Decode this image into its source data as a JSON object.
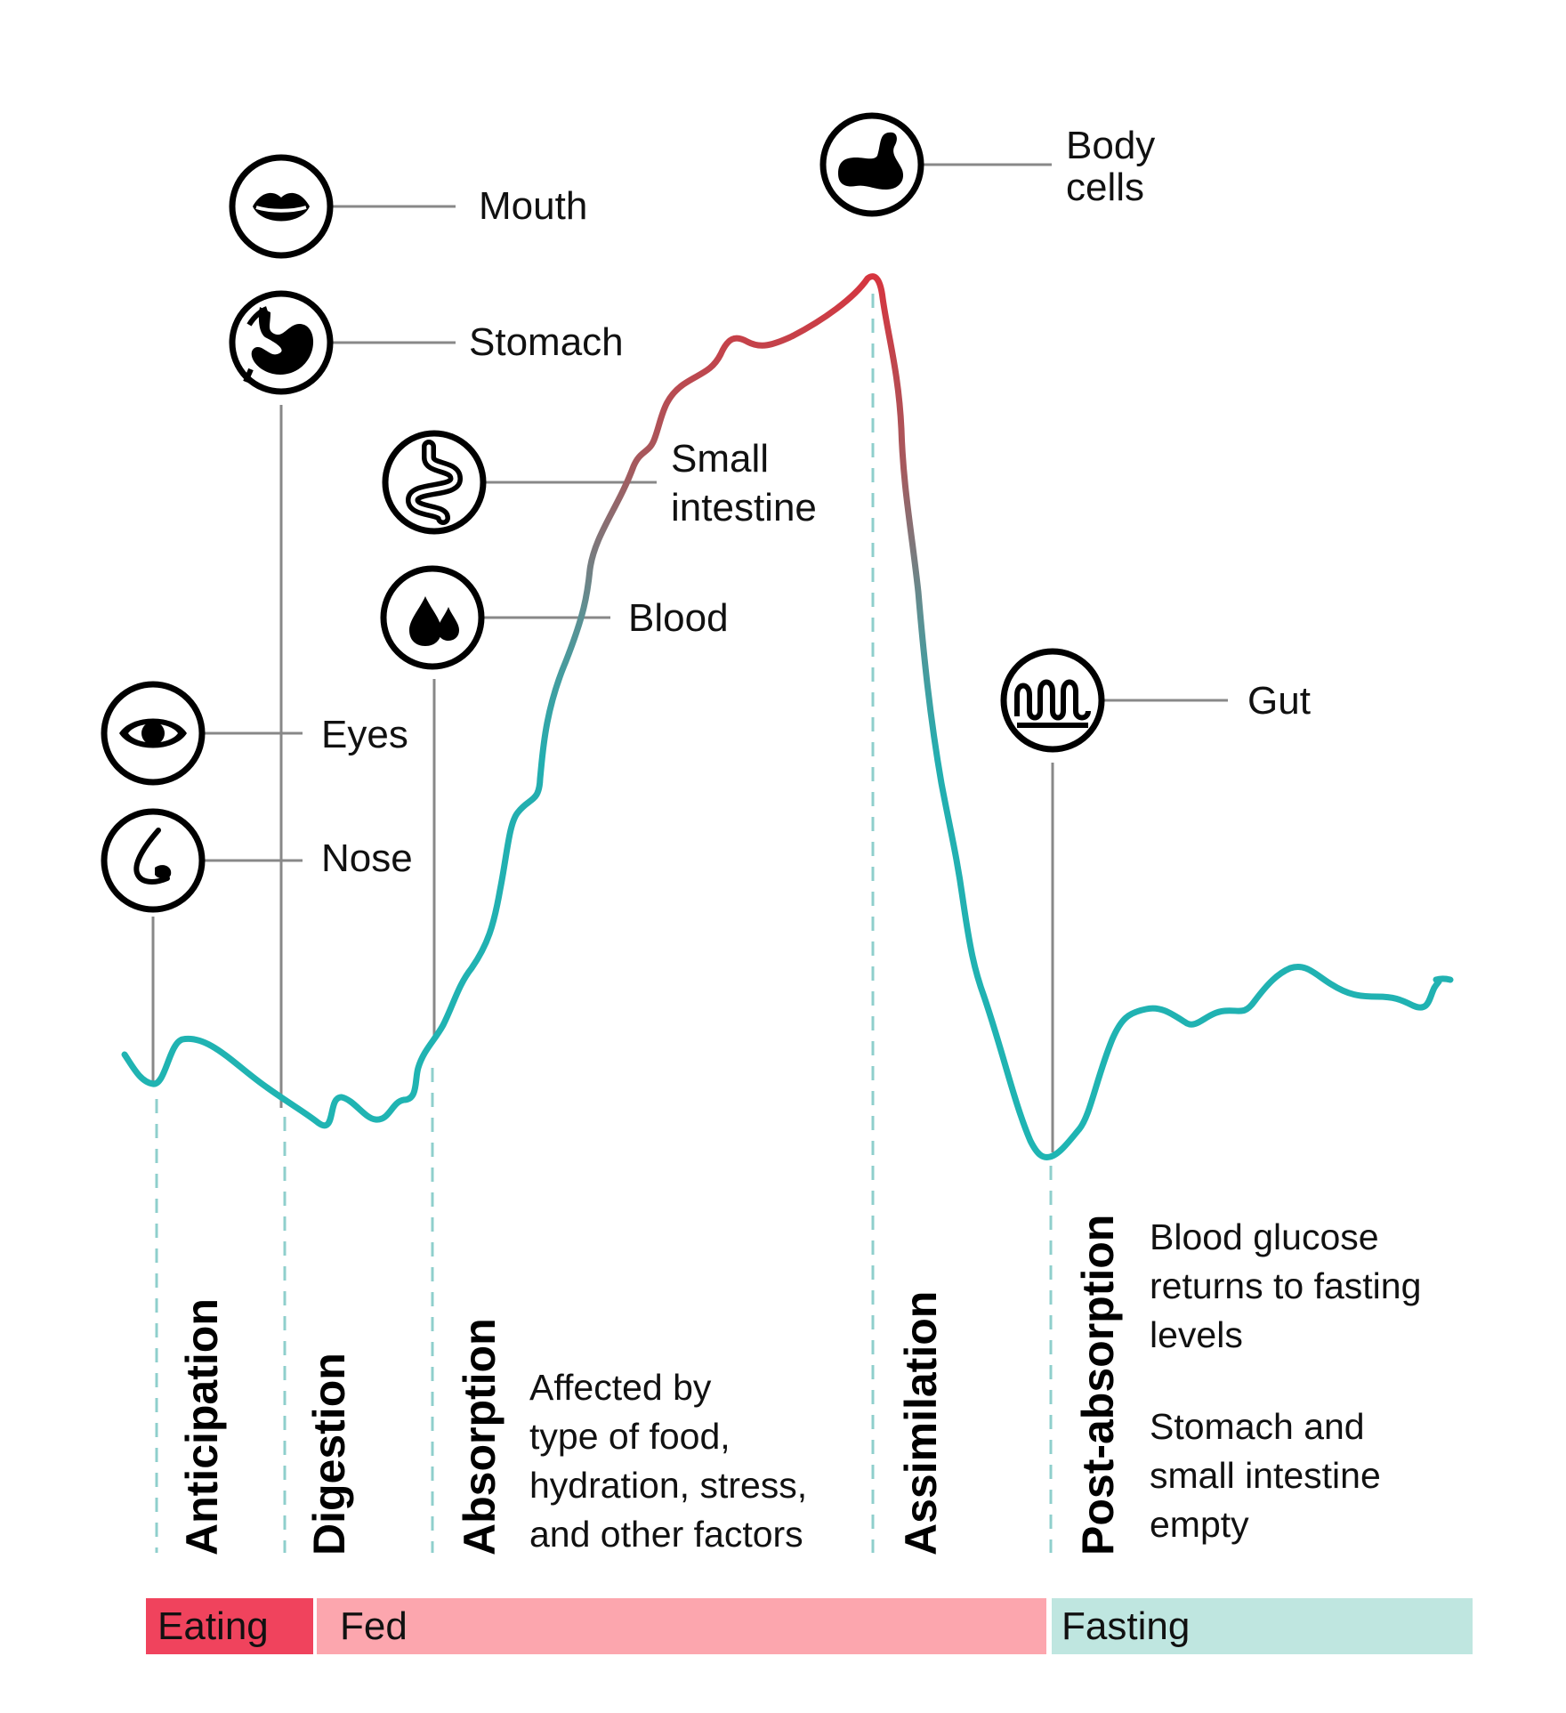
{
  "organs": {
    "mouth": {
      "label": "Mouth",
      "icon": "lips-icon"
    },
    "stomach": {
      "label": "Stomach",
      "icon": "stomach-icon"
    },
    "small_intestine": {
      "label_line1": "Small",
      "label_line2": "intestine",
      "icon": "intestine-icon"
    },
    "blood": {
      "label": "Blood",
      "icon": "blood-drops-icon"
    },
    "eyes": {
      "label": "Eyes",
      "icon": "eye-icon"
    },
    "nose": {
      "label": "Nose",
      "icon": "nose-icon"
    },
    "body_cells": {
      "label_line1": "Body",
      "label_line2": "cells",
      "icon": "muscle-arm-icon"
    },
    "gut": {
      "label": "Gut",
      "icon": "gut-villi-icon"
    }
  },
  "phases": {
    "anticipation": "Anticipation",
    "digestion": "Digestion",
    "absorption": "Absorption",
    "assimilation": "Assimilation",
    "post_absorption": "Post-absorption"
  },
  "notes": {
    "absorption": [
      "Affected by",
      "type of food,",
      "hydration, stress,",
      "and other factors"
    ],
    "post_absorption_glucose": [
      "Blood glucose",
      "returns to fasting",
      "levels"
    ],
    "post_absorption_empty": [
      "Stomach and",
      "small intestine",
      "empty"
    ]
  },
  "bands": {
    "eating": {
      "label": "Eating",
      "color": "#f0435d"
    },
    "fed": {
      "label": "Fed",
      "color": "#fca6ae"
    },
    "fasting": {
      "label": "Fasting",
      "color": "#bfe6e0"
    }
  },
  "colors": {
    "curve_low": "#1fb5b3",
    "curve_high": "#d6353f",
    "phase_divider": "#8fcfcc",
    "connector": "#888888"
  }
}
